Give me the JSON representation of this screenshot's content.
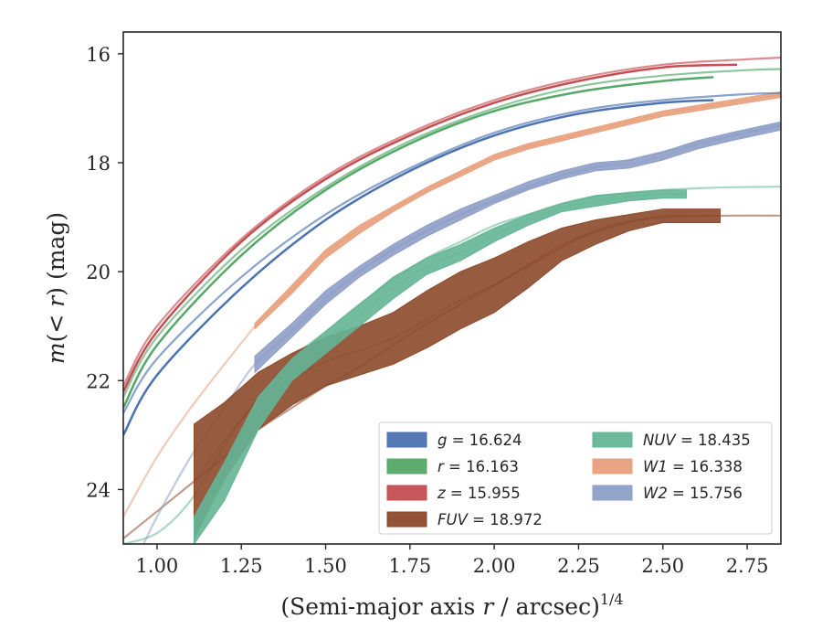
{
  "chart_data": {
    "type": "line",
    "xlabel": "(Semi-major axis r / arcsec)^1/4",
    "ylabel": "m(< r) (mag)",
    "xlim": [
      0.9,
      2.85
    ],
    "ylim": [
      25.0,
      15.6
    ],
    "y_inverted": true,
    "grid": false,
    "legend_position": "lower-right",
    "x_ticks": [
      "1.00",
      "1.25",
      "1.50",
      "1.75",
      "2.00",
      "2.25",
      "2.50",
      "2.75"
    ],
    "y_ticks": [
      "16",
      "18",
      "20",
      "22",
      "24"
    ],
    "series": [
      {
        "name": "g = 16.624",
        "legend_var": "g",
        "legend_val": "= 16.624",
        "color": "#4c72b0",
        "style": "line",
        "x": [
          0.9,
          1.0,
          1.25,
          1.5,
          1.75,
          2.0,
          2.25,
          2.5,
          2.75,
          2.85
        ],
        "y": [
          22.6,
          21.6,
          20.1,
          18.95,
          18.1,
          17.45,
          17.05,
          16.85,
          16.74,
          16.72
        ],
        "x2": [
          0.9,
          1.0,
          1.25,
          1.5,
          1.75,
          2.0,
          2.25,
          2.5,
          2.65
        ],
        "y2": [
          23.0,
          21.9,
          20.3,
          19.05,
          18.15,
          17.5,
          17.1,
          16.9,
          16.85
        ]
      },
      {
        "name": "r = 16.163",
        "legend_var": "r",
        "legend_val": "= 16.163",
        "color": "#55a868",
        "style": "line",
        "x": [
          0.9,
          1.0,
          1.25,
          1.5,
          1.75,
          2.0,
          2.25,
          2.5,
          2.75,
          2.85
        ],
        "y": [
          22.3,
          21.2,
          19.6,
          18.45,
          17.6,
          17.0,
          16.6,
          16.4,
          16.3,
          16.28
        ],
        "x2": [
          0.9,
          1.0,
          1.25,
          1.5,
          1.75,
          2.0,
          2.25,
          2.5,
          2.65
        ],
        "y2": [
          22.5,
          21.35,
          19.7,
          18.5,
          17.65,
          17.05,
          16.7,
          16.5,
          16.43
        ]
      },
      {
        "name": "z = 15.955",
        "legend_var": "z",
        "legend_val": "= 15.955",
        "color": "#c44e52",
        "style": "line",
        "x": [
          0.9,
          1.0,
          1.25,
          1.5,
          1.75,
          2.0,
          2.25,
          2.5,
          2.75,
          2.85
        ],
        "y": [
          22.1,
          21.0,
          19.4,
          18.25,
          17.45,
          16.85,
          16.45,
          16.2,
          16.1,
          16.07
        ],
        "x2": [
          0.9,
          1.0,
          1.25,
          1.5,
          1.75,
          2.0,
          2.25,
          2.5,
          2.72
        ],
        "y2": [
          22.2,
          21.1,
          19.45,
          18.3,
          17.5,
          16.9,
          16.5,
          16.25,
          16.2
        ]
      },
      {
        "name": "FUV = 18.972",
        "legend_var": "FUV",
        "legend_val": "= 18.972",
        "color": "#8c4a2b",
        "style": "band",
        "x": [
          1.11,
          1.2,
          1.3,
          1.4,
          1.5,
          1.6,
          1.7,
          1.8,
          1.9,
          2.0,
          2.1,
          2.2,
          2.3,
          2.4,
          2.5,
          2.6,
          2.67
        ],
        "y_upper": [
          22.8,
          22.4,
          21.85,
          21.5,
          21.2,
          21.0,
          20.75,
          20.35,
          20.0,
          19.75,
          19.45,
          19.2,
          19.05,
          18.95,
          18.85,
          18.85,
          18.85
        ],
        "y_lower": [
          24.9,
          23.8,
          22.9,
          22.45,
          22.1,
          21.9,
          21.7,
          21.4,
          21.05,
          20.75,
          20.3,
          19.8,
          19.5,
          19.25,
          19.1,
          19.1,
          19.1
        ],
        "line_x": [
          0.9,
          1.0,
          1.1,
          1.2,
          1.3,
          1.4,
          1.5,
          1.6,
          1.7,
          1.8,
          1.9,
          2.0,
          2.1,
          2.2,
          2.3,
          2.4,
          2.5,
          2.6,
          2.7,
          2.85
        ],
        "line_y": [
          24.9,
          24.4,
          23.9,
          23.4,
          22.9,
          22.5,
          22.1,
          21.75,
          21.35,
          20.95,
          20.6,
          20.25,
          19.9,
          19.55,
          19.25,
          19.08,
          19.0,
          18.98,
          18.97,
          18.97
        ]
      },
      {
        "name": "NUV = 18.435",
        "legend_var": "NUV",
        "legend_val": "= 18.435",
        "color": "#64b596",
        "style": "band",
        "x": [
          1.11,
          1.2,
          1.3,
          1.4,
          1.5,
          1.6,
          1.7,
          1.8,
          1.9,
          2.0,
          2.1,
          2.2,
          2.3,
          2.4,
          2.5,
          2.57
        ],
        "y_upper": [
          24.5,
          23.5,
          22.3,
          21.6,
          21.1,
          20.6,
          20.1,
          19.75,
          19.5,
          19.2,
          18.95,
          18.75,
          18.6,
          18.55,
          18.5,
          18.5
        ],
        "y_lower": [
          25.0,
          24.2,
          22.9,
          22.0,
          21.5,
          21.0,
          20.5,
          20.05,
          19.8,
          19.45,
          19.15,
          18.9,
          18.8,
          18.7,
          18.65,
          18.65
        ],
        "line_x": [
          0.9,
          1.0,
          1.1,
          1.2,
          1.3,
          1.4,
          1.5,
          1.6,
          1.7,
          1.8,
          1.9,
          2.0,
          2.1,
          2.2,
          2.3,
          2.4,
          2.5,
          2.6,
          2.7,
          2.85
        ],
        "line_y": [
          25.0,
          24.8,
          24.2,
          23.2,
          22.3,
          21.6,
          21.1,
          20.6,
          20.15,
          19.75,
          19.45,
          19.15,
          18.95,
          18.75,
          18.62,
          18.55,
          18.5,
          18.47,
          18.45,
          18.44
        ]
      },
      {
        "name": "W1 = 16.338",
        "legend_var": "W1",
        "legend_val": "= 16.338",
        "color": "#e8a07c",
        "style": "band",
        "x": [
          1.29,
          1.4,
          1.5,
          1.6,
          1.7,
          1.8,
          1.9,
          2.0,
          2.1,
          2.2,
          2.3,
          2.4,
          2.5,
          2.6,
          2.7,
          2.85
        ],
        "y_upper": [
          20.95,
          20.25,
          19.6,
          19.15,
          18.8,
          18.45,
          18.15,
          17.85,
          17.65,
          17.5,
          17.35,
          17.2,
          17.05,
          16.95,
          16.85,
          16.7
        ],
        "y_lower": [
          21.05,
          20.4,
          19.75,
          19.3,
          18.9,
          18.55,
          18.25,
          17.95,
          17.75,
          17.6,
          17.45,
          17.3,
          17.15,
          17.05,
          16.95,
          16.8
        ],
        "line_x": [
          0.9,
          1.0,
          1.1,
          1.2,
          1.29
        ],
        "line_y": [
          24.5,
          23.4,
          22.5,
          21.7,
          21.0
        ]
      },
      {
        "name": "W2 = 15.756",
        "legend_var": "W2",
        "legend_val": "= 15.756",
        "color": "#8e9fc6",
        "style": "band",
        "x": [
          1.29,
          1.4,
          1.5,
          1.6,
          1.7,
          1.8,
          1.9,
          2.0,
          2.1,
          2.2,
          2.3,
          2.4,
          2.5,
          2.6,
          2.7,
          2.85
        ],
        "y_upper": [
          21.55,
          20.95,
          20.35,
          19.9,
          19.5,
          19.15,
          18.85,
          18.6,
          18.35,
          18.15,
          18.0,
          17.95,
          17.8,
          17.6,
          17.45,
          17.25
        ],
        "y_lower": [
          21.85,
          21.2,
          20.6,
          20.1,
          19.7,
          19.35,
          19.05,
          18.75,
          18.5,
          18.3,
          18.15,
          18.1,
          17.95,
          17.75,
          17.6,
          17.4
        ],
        "line_x": [
          0.96,
          1.0,
          1.1,
          1.2,
          1.29,
          1.4,
          1.6,
          1.8,
          2.0,
          2.2,
          2.4,
          2.6,
          2.85
        ],
        "line_y": [
          25.0,
          24.5,
          23.4,
          22.5,
          21.7,
          21.1,
          20.0,
          19.25,
          18.7,
          18.25,
          17.95,
          17.65,
          17.3
        ]
      }
    ]
  }
}
